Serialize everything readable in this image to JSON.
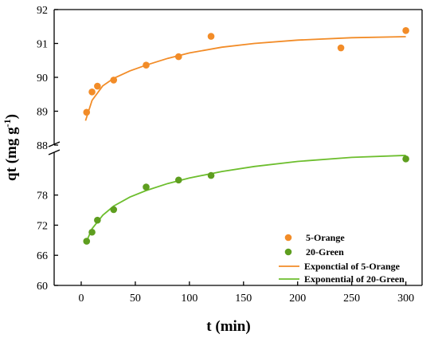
{
  "chart_data": {
    "type": "scatter",
    "xlabel": "t (min)",
    "ylabel_main": "qt (mg g",
    "ylabel_sup": "-1",
    "ylabel_close": ")",
    "xlim": [
      -25,
      315
    ],
    "x_ticks": [
      0,
      50,
      100,
      150,
      200,
      250,
      300
    ],
    "y_axis_break": true,
    "upper_panel": {
      "ylim": [
        88,
        92
      ],
      "y_ticks": [
        88,
        89,
        90,
        91,
        92
      ]
    },
    "lower_panel": {
      "ylim": [
        60,
        87
      ],
      "y_ticks": [
        60,
        66,
        72,
        78
      ]
    },
    "legend_position": "bottom-right",
    "series": [
      {
        "name": "5-Orange",
        "kind": "points",
        "panel": "upper",
        "color": "#F28C28",
        "x": [
          5,
          10,
          15,
          30,
          60,
          90,
          120,
          240,
          300
        ],
        "y": [
          88.97,
          89.57,
          89.74,
          89.92,
          90.36,
          90.61,
          91.21,
          90.87,
          91.38
        ]
      },
      {
        "name": "20-Green",
        "kind": "points",
        "panel": "lower",
        "color": "#5E9E1F",
        "x": [
          5,
          10,
          15,
          30,
          60,
          90,
          120,
          300
        ],
        "y": [
          68.8,
          70.6,
          73.0,
          75.1,
          79.6,
          81.0,
          81.9,
          85.2
        ]
      },
      {
        "name": "Exponctial of 5-Orange",
        "kind": "line",
        "panel": "upper",
        "color": "#F28C28",
        "x": [
          4,
          10,
          20,
          30,
          45,
          60,
          80,
          100,
          130,
          160,
          200,
          250,
          300
        ],
        "y": [
          88.72,
          89.32,
          89.75,
          89.97,
          90.19,
          90.36,
          90.56,
          90.72,
          90.89,
          91.0,
          91.1,
          91.17,
          91.2
        ]
      },
      {
        "name": "Exponential of 20-Green",
        "kind": "line",
        "panel": "lower",
        "color": "#6DBE2E",
        "x": [
          4,
          10,
          20,
          30,
          45,
          60,
          80,
          100,
          130,
          160,
          200,
          250,
          300
        ],
        "y": [
          68.3,
          71.3,
          74.0,
          75.8,
          77.6,
          78.9,
          80.3,
          81.4,
          82.7,
          83.7,
          84.7,
          85.5,
          85.9
        ]
      }
    ]
  }
}
